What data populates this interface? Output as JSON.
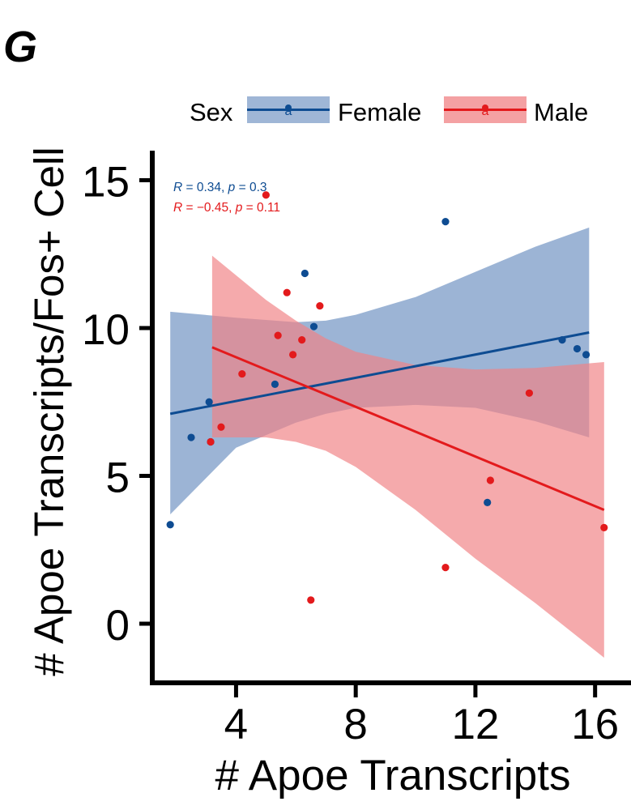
{
  "panel_label": "G",
  "chart_data": {
    "type": "scatter",
    "title": "",
    "xlabel": "# Apoe Transcripts",
    "ylabel": "# Apoe Transcripts/Fos+ Cell",
    "xlim": [
      1.2,
      17.2
    ],
    "ylim": [
      -2.0,
      16.0
    ],
    "x_ticks": [
      4,
      8,
      12,
      16
    ],
    "y_ticks": [
      0,
      5,
      10,
      15
    ],
    "grid": false,
    "legend": {
      "title": "Sex",
      "position": "top",
      "entries": [
        "Female",
        "Male"
      ],
      "glyph_letter": "a"
    },
    "series": [
      {
        "name": "Female",
        "color": "#0e4c92",
        "band_color": "#5f86bb",
        "points": [
          {
            "x": 1.8,
            "y": 3.35
          },
          {
            "x": 2.5,
            "y": 6.3
          },
          {
            "x": 3.1,
            "y": 7.5
          },
          {
            "x": 3.15,
            "y": 6.15
          },
          {
            "x": 5.3,
            "y": 8.1
          },
          {
            "x": 6.3,
            "y": 11.85
          },
          {
            "x": 6.6,
            "y": 10.05
          },
          {
            "x": 11.0,
            "y": 13.6
          },
          {
            "x": 12.4,
            "y": 4.1
          },
          {
            "x": 14.9,
            "y": 9.6
          },
          {
            "x": 15.4,
            "y": 9.3
          },
          {
            "x": 15.7,
            "y": 9.1
          }
        ],
        "fit": {
          "x": [
            1.8,
            15.8
          ],
          "y": [
            7.1,
            9.85
          ]
        },
        "ci_band": {
          "x": [
            1.8,
            4,
            6,
            7,
            8,
            10,
            12,
            14,
            15.8
          ],
          "upper": [
            10.55,
            10.35,
            10.2,
            10.25,
            10.45,
            11.05,
            11.9,
            12.75,
            13.4
          ],
          "lower": [
            3.7,
            5.95,
            6.8,
            7.1,
            7.3,
            7.4,
            7.3,
            6.85,
            6.3
          ]
        },
        "stat": {
          "R": "0.34",
          "p": "0.3"
        }
      },
      {
        "name": "Male",
        "color": "#e31a1c",
        "band_color": "#f08284",
        "points": [
          {
            "x": 3.15,
            "y": 6.15
          },
          {
            "x": 3.5,
            "y": 6.65
          },
          {
            "x": 4.2,
            "y": 8.45
          },
          {
            "x": 5.0,
            "y": 14.5
          },
          {
            "x": 5.4,
            "y": 9.75
          },
          {
            "x": 5.7,
            "y": 11.2
          },
          {
            "x": 5.9,
            "y": 9.1
          },
          {
            "x": 6.2,
            "y": 9.6
          },
          {
            "x": 6.5,
            "y": 0.8
          },
          {
            "x": 6.8,
            "y": 10.75
          },
          {
            "x": 11.0,
            "y": 1.9
          },
          {
            "x": 12.5,
            "y": 4.85
          },
          {
            "x": 13.8,
            "y": 7.8
          },
          {
            "x": 16.3,
            "y": 3.25
          }
        ],
        "fit": {
          "x": [
            3.2,
            16.3
          ],
          "y": [
            9.35,
            3.85
          ]
        },
        "ci_band": {
          "x": [
            3.2,
            5,
            6,
            7,
            8,
            10,
            12,
            14,
            16.3
          ],
          "upper": [
            12.45,
            10.95,
            10.25,
            9.65,
            9.2,
            8.75,
            8.6,
            8.65,
            8.85
          ],
          "lower": [
            6.3,
            6.3,
            6.15,
            5.85,
            5.3,
            3.85,
            2.2,
            0.7,
            -1.15
          ]
        },
        "stat": {
          "R": "−0.45",
          "p": "0.11"
        }
      }
    ]
  }
}
